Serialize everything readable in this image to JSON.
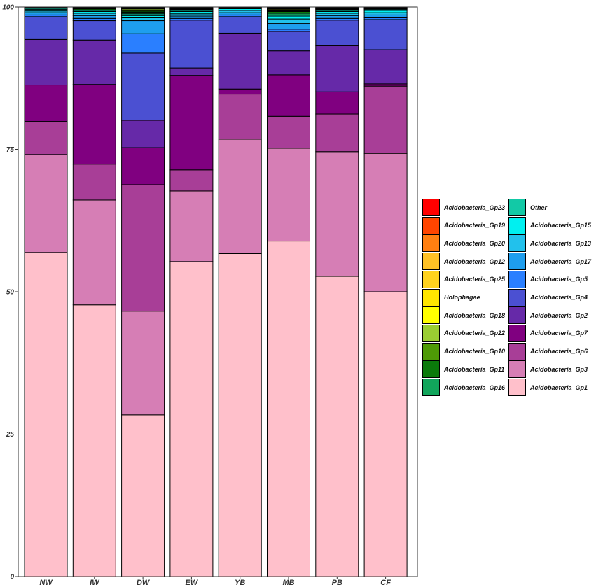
{
  "chart_data": {
    "type": "bar",
    "stacked": true,
    "title": "",
    "xlabel": "",
    "ylabel": "",
    "ylim": [
      0,
      100
    ],
    "yticks": [
      0,
      25,
      50,
      75,
      100
    ],
    "categories": [
      "NW",
      "IW",
      "DW",
      "EW",
      "YB",
      "MB",
      "PB",
      "CF"
    ],
    "series": [
      {
        "name": "Acidobacteria_Gp1",
        "color": "#FFC0CB",
        "values": [
          56.9,
          47.7,
          28.4,
          55.3,
          56.7,
          58.9,
          52.7,
          50.0
        ]
      },
      {
        "name": "Acidobacteria_Gp3",
        "color": "#D67EB5",
        "values": [
          17.2,
          18.4,
          18.2,
          12.4,
          20.1,
          16.3,
          21.9,
          24.3
        ]
      },
      {
        "name": "Acidobacteria_Gp6",
        "color": "#A83E97",
        "values": [
          5.8,
          6.3,
          22.2,
          3.7,
          7.9,
          5.6,
          6.6,
          11.8
        ]
      },
      {
        "name": "Acidobacteria_Gp7",
        "color": "#800080",
        "values": [
          6.4,
          14.0,
          6.5,
          16.6,
          0.9,
          7.3,
          3.9,
          0.4
        ]
      },
      {
        "name": "Acidobacteria_Gp2",
        "color": "#6629A8",
        "values": [
          8.0,
          7.8,
          4.8,
          1.3,
          9.8,
          4.2,
          8.1,
          6.0
        ]
      },
      {
        "name": "Acidobacteria_Gp4",
        "color": "#4B50D2",
        "values": [
          4.0,
          3.4,
          11.8,
          8.4,
          2.9,
          3.4,
          4.5,
          5.3
        ]
      },
      {
        "name": "Acidobacteria_Gp5",
        "color": "#2A7FFF",
        "values": [
          0.3,
          0.4,
          3.4,
          0.3,
          0.3,
          0.4,
          0.3,
          0.3
        ]
      },
      {
        "name": "Acidobacteria_Gp17",
        "color": "#1E9EEE",
        "values": [
          0.4,
          0.5,
          2.3,
          0.4,
          0.4,
          1.0,
          0.5,
          0.5
        ]
      },
      {
        "name": "Acidobacteria_Gp13",
        "color": "#22C1EC",
        "values": [
          0.3,
          0.4,
          0.5,
          0.4,
          0.4,
          0.8,
          0.4,
          0.4
        ]
      },
      {
        "name": "Acidobacteria_Gp15",
        "color": "#00F0F0",
        "values": [
          0.3,
          0.3,
          0.4,
          0.4,
          0.3,
          0.5,
          0.3,
          0.4
        ]
      },
      {
        "name": "Other",
        "color": "#12C9A6",
        "values": [
          0.2,
          0.2,
          0.3,
          0.2,
          0.2,
          0.2,
          0.2,
          0.2
        ]
      },
      {
        "name": "Acidobacteria_Gp16",
        "color": "#11A55B",
        "values": [
          0.1,
          0.1,
          0.3,
          0.1,
          0.1,
          0.3,
          0.1,
          0.1
        ]
      },
      {
        "name": "Acidobacteria_Gp11",
        "color": "#0B7A0B",
        "values": [
          0.1,
          0.2,
          0.2,
          0.1,
          0.1,
          0.3,
          0.1,
          0.1
        ]
      },
      {
        "name": "Acidobacteria_Gp10",
        "color": "#4E9A06",
        "values": [
          0.1,
          0.1,
          0.2,
          0.1,
          0.1,
          0.1,
          0.1,
          0.1
        ]
      },
      {
        "name": "Acidobacteria_Gp22",
        "color": "#9ACD32",
        "values": [
          0.1,
          0.1,
          0.2,
          0.1,
          0.1,
          0.1,
          0.1,
          0.1
        ]
      },
      {
        "name": "Acidobacteria_Gp18",
        "color": "#FFFF00",
        "values": [
          0.1,
          0.1,
          0.2,
          0.1,
          0.1,
          0.2,
          0.1,
          0.1
        ]
      },
      {
        "name": "Holophagae",
        "color": "#FFE600",
        "values": [
          0.1,
          0.0,
          0.1,
          0.0,
          0.1,
          0.1,
          0.1,
          0.0
        ]
      },
      {
        "name": "Acidobacteria_Gp25",
        "color": "#FFD21E",
        "values": [
          0.1,
          0.0,
          0.1,
          0.0,
          0.1,
          0.1,
          0.0,
          0.0
        ]
      },
      {
        "name": "Acidobacteria_Gp12",
        "color": "#FFC125",
        "values": [
          0.0,
          0.0,
          0.1,
          0.0,
          0.0,
          0.1,
          0.0,
          0.0
        ]
      },
      {
        "name": "Acidobacteria_Gp20",
        "color": "#FF7F11",
        "values": [
          0.0,
          0.0,
          0.1,
          0.0,
          0.0,
          0.1,
          0.0,
          0.0
        ]
      },
      {
        "name": "Acidobacteria_Gp19",
        "color": "#FF4500",
        "values": [
          0.0,
          0.0,
          0.0,
          0.0,
          0.0,
          0.0,
          0.0,
          0.0
        ]
      },
      {
        "name": "Acidobacteria_Gp23",
        "color": "#FF0000",
        "values": [
          0.0,
          0.0,
          0.0,
          0.0,
          0.0,
          0.0,
          0.0,
          0.0
        ]
      }
    ],
    "legend": {
      "placement": "right",
      "columns": [
        [
          "Acidobacteria_Gp23",
          "Acidobacteria_Gp19",
          "Acidobacteria_Gp20",
          "Acidobacteria_Gp12",
          "Acidobacteria_Gp25",
          "Holophagae",
          "Acidobacteria_Gp18",
          "Acidobacteria_Gp22",
          "Acidobacteria_Gp10",
          "Acidobacteria_Gp11",
          "Acidobacteria_Gp16"
        ],
        [
          "Other",
          "Acidobacteria_Gp15",
          "Acidobacteria_Gp13",
          "Acidobacteria_Gp17",
          "Acidobacteria_Gp5",
          "Acidobacteria_Gp4",
          "Acidobacteria_Gp2",
          "Acidobacteria_Gp7",
          "Acidobacteria_Gp6",
          "Acidobacteria_Gp3",
          "Acidobacteria_Gp1"
        ]
      ]
    }
  }
}
